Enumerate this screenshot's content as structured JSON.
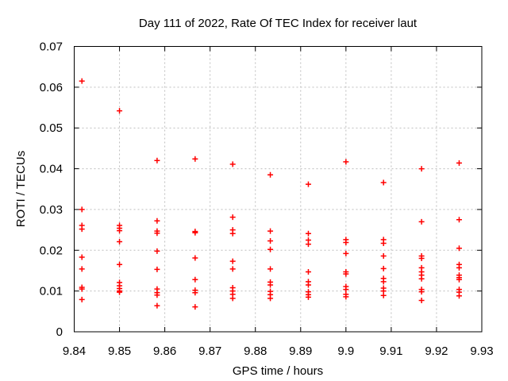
{
  "window": {
    "background_color": "#ffffff",
    "text_color": "#000000",
    "grid_color": "#bdbdbd",
    "border_color": "#000000"
  },
  "chart_data": {
    "type": "scatter",
    "title": "Day 111 of 2022, Rate Of TEC Index for receiver laut",
    "xlabel": "GPS time / hours",
    "ylabel": "ROTI / TECUs",
    "xlim": [
      9.84,
      9.93
    ],
    "ylim": [
      0,
      0.07
    ],
    "grid": true,
    "legend_position": "none",
    "marker": "plus-icon",
    "marker_color": "#ff0000",
    "marker_size": 7,
    "xticks": {
      "values": [
        9.84,
        9.85,
        9.86,
        9.87,
        9.88,
        9.89,
        9.9,
        9.91,
        9.92,
        9.93
      ],
      "labels": [
        "9.84",
        "9.85",
        "9.86",
        "9.87",
        "9.88",
        "9.89",
        "9.9",
        "9.91",
        "9.92",
        "9.93"
      ]
    },
    "yticks": {
      "values": [
        0,
        0.01,
        0.02,
        0.03,
        0.04,
        0.05,
        0.06,
        0.07
      ],
      "labels": [
        "0",
        "0.01",
        "0.02",
        "0.03",
        "0.04",
        "0.05",
        "0.06",
        "0.07"
      ]
    },
    "series": [
      {
        "name": "ROTI",
        "groups": [
          {
            "x": 9.8417,
            "y": [
              0.0615,
              0.03,
              0.0261,
              0.0252,
              0.0183,
              0.0154,
              0.0109,
              0.0105,
              0.0079
            ]
          },
          {
            "x": 9.85,
            "y": [
              0.0542,
              0.0261,
              0.0254,
              0.0248,
              0.0221,
              0.0165,
              0.0121,
              0.0113,
              0.0106,
              0.01,
              0.0097
            ]
          },
          {
            "x": 9.8583,
            "y": [
              0.042,
              0.0272,
              0.0247,
              0.0242,
              0.0198,
              0.0153,
              0.0105,
              0.0096,
              0.009,
              0.0064
            ]
          },
          {
            "x": 9.8667,
            "y": [
              0.0424,
              0.0246,
              0.0243,
              0.0181,
              0.0128,
              0.0102,
              0.0096,
              0.0061
            ]
          },
          {
            "x": 9.875,
            "y": [
              0.0411,
              0.0281,
              0.025,
              0.0241,
              0.0173,
              0.0154,
              0.0108,
              0.01,
              0.0092,
              0.0082
            ]
          },
          {
            "x": 9.8833,
            "y": [
              0.0385,
              0.0247,
              0.0223,
              0.0202,
              0.0154,
              0.0122,
              0.0115,
              0.0099,
              0.0091,
              0.0082
            ]
          },
          {
            "x": 9.8917,
            "y": [
              0.0362,
              0.0241,
              0.0225,
              0.0215,
              0.0147,
              0.0123,
              0.0115,
              0.0098,
              0.0091,
              0.0085
            ]
          },
          {
            "x": 9.9,
            "y": [
              0.0417,
              0.0226,
              0.0219,
              0.0192,
              0.0147,
              0.0142,
              0.0111,
              0.0104,
              0.0092,
              0.0086
            ]
          },
          {
            "x": 9.9083,
            "y": [
              0.0366,
              0.0226,
              0.0217,
              0.0186,
              0.0155,
              0.0131,
              0.0123,
              0.0107,
              0.01,
              0.0089
            ]
          },
          {
            "x": 9.9167,
            "y": [
              0.04,
              0.027,
              0.0186,
              0.018,
              0.0157,
              0.0147,
              0.0139,
              0.013,
              0.0104,
              0.0098,
              0.0077
            ]
          },
          {
            "x": 9.925,
            "y": [
              0.0414,
              0.0275,
              0.0205,
              0.0165,
              0.0157,
              0.0139,
              0.0133,
              0.0128,
              0.0104,
              0.0097,
              0.0088
            ]
          }
        ]
      }
    ]
  }
}
